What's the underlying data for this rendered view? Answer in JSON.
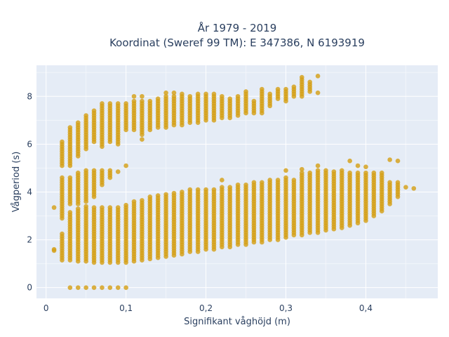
{
  "chart_data": {
    "type": "scatter",
    "title": [
      "År 1979 - 2019",
      "Koordinat (Sweref 99 TM): E 347386, N 6193919"
    ],
    "xlabel": "Signifikant våghöjd (m)",
    "ylabel": "Vågperiod (s)",
    "xlim": [
      -0.012,
      0.49
    ],
    "ylim": [
      -0.45,
      9.3
    ],
    "x_ticks": [
      0,
      0.1,
      0.2,
      0.3,
      0.4
    ],
    "x_tick_labels": [
      "0",
      "0,1",
      "0,2",
      "0,3",
      "0,4"
    ],
    "y_ticks": [
      0,
      2,
      4,
      6,
      8
    ],
    "y_tick_labels": [
      "0",
      "2",
      "4",
      "6",
      "8"
    ],
    "grid": true,
    "marker_color": "#D4A017",
    "series": [
      {
        "x_step": 0.01,
        "columns": [
          {
            "x": 0.01,
            "y": [
              1.55,
              1.6,
              3.35
            ]
          },
          {
            "x": 0.02,
            "y_ranges": [
              [
                1.15,
                2.3
              ],
              [
                2.9,
                4.6
              ],
              [
                5.1,
                6.1
              ]
            ]
          },
          {
            "x": 0.03,
            "y_ranges": [
              [
                1.15,
                3.2
              ],
              [
                3.5,
                4.6
              ],
              [
                5.1,
                6.7
              ]
            ],
            "y": [
              0
            ]
          },
          {
            "x": 0.04,
            "y_ranges": [
              [
                1.1,
                3.3
              ],
              [
                3.5,
                4.8
              ],
              [
                5.5,
                6.9
              ]
            ],
            "y": [
              0
            ]
          },
          {
            "x": 0.05,
            "y_ranges": [
              [
                1.1,
                3.4
              ],
              [
                3.6,
                4.9
              ],
              [
                5.8,
                7.2
              ]
            ],
            "y": [
              0
            ]
          },
          {
            "x": 0.06,
            "y_ranges": [
              [
                1.05,
                3.4
              ],
              [
                3.8,
                4.9
              ],
              [
                6.1,
                7.4
              ]
            ],
            "y": [
              0
            ]
          },
          {
            "x": 0.07,
            "y_ranges": [
              [
                1.05,
                3.4
              ],
              [
                4.3,
                4.9
              ],
              [
                5.9,
                7.7
              ]
            ],
            "y": [
              0
            ]
          },
          {
            "x": 0.08,
            "y_ranges": [
              [
                1.05,
                3.4
              ],
              [
                4.6,
                4.9
              ],
              [
                6.1,
                7.7
              ]
            ],
            "y": [
              0
            ]
          },
          {
            "x": 0.09,
            "y_ranges": [
              [
                1.05,
                3.4
              ],
              [
                6.0,
                7.7
              ]
            ],
            "y": [
              0,
              4.85
            ]
          },
          {
            "x": 0.1,
            "y_ranges": [
              [
                1.05,
                3.5
              ],
              [
                6.6,
                7.7
              ]
            ],
            "y": [
              0,
              5.1
            ]
          },
          {
            "x": 0.11,
            "y_ranges": [
              [
                1.1,
                3.6
              ],
              [
                6.6,
                7.8
              ]
            ],
            "y": [
              8.0
            ]
          },
          {
            "x": 0.12,
            "y_ranges": [
              [
                1.15,
                3.7
              ],
              [
                6.4,
                7.8
              ]
            ],
            "y": [
              8.0,
              6.2
            ]
          },
          {
            "x": 0.13,
            "y_ranges": [
              [
                1.2,
                3.8
              ],
              [
                6.6,
                7.8
              ]
            ]
          },
          {
            "x": 0.14,
            "y_ranges": [
              [
                1.25,
                3.9
              ],
              [
                6.7,
                7.9
              ]
            ]
          },
          {
            "x": 0.15,
            "y_ranges": [
              [
                1.3,
                3.95
              ],
              [
                6.7,
                8.0
              ]
            ],
            "y": [
              8.15
            ]
          },
          {
            "x": 0.16,
            "y_ranges": [
              [
                1.35,
                4.0
              ],
              [
                6.8,
                8.0
              ]
            ],
            "y": [
              8.15
            ]
          },
          {
            "x": 0.17,
            "y_ranges": [
              [
                1.4,
                4.05
              ],
              [
                6.8,
                8.0
              ]
            ],
            "y": [
              8.1
            ]
          },
          {
            "x": 0.18,
            "y_ranges": [
              [
                1.5,
                4.1
              ],
              [
                6.9,
                8.0
              ]
            ]
          },
          {
            "x": 0.19,
            "y_ranges": [
              [
                1.5,
                4.1
              ],
              [
                6.9,
                8.1
              ]
            ]
          },
          {
            "x": 0.2,
            "y_ranges": [
              [
                1.6,
                4.15
              ],
              [
                7.0,
                8.1
              ]
            ]
          },
          {
            "x": 0.21,
            "y_ranges": [
              [
                1.6,
                4.15
              ],
              [
                7.0,
                8.1
              ]
            ]
          },
          {
            "x": 0.22,
            "y_ranges": [
              [
                1.7,
                4.2
              ],
              [
                7.1,
                8.0
              ]
            ],
            "y": [
              4.5
            ]
          },
          {
            "x": 0.23,
            "y_ranges": [
              [
                1.7,
                4.2
              ],
              [
                7.1,
                7.9
              ]
            ]
          },
          {
            "x": 0.24,
            "y_ranges": [
              [
                1.8,
                4.3
              ],
              [
                7.2,
                8.0
              ]
            ]
          },
          {
            "x": 0.25,
            "y_ranges": [
              [
                1.8,
                4.3
              ],
              [
                7.3,
                8.2
              ]
            ]
          },
          {
            "x": 0.26,
            "y_ranges": [
              [
                1.9,
                4.4
              ],
              [
                7.3,
                7.8
              ]
            ]
          },
          {
            "x": 0.27,
            "y_ranges": [
              [
                1.9,
                4.4
              ],
              [
                7.3,
                8.3
              ]
            ]
          },
          {
            "x": 0.28,
            "y_ranges": [
              [
                2.0,
                4.5
              ],
              [
                7.6,
                8.1
              ]
            ]
          },
          {
            "x": 0.29,
            "y_ranges": [
              [
                2.0,
                4.5
              ],
              [
                7.9,
                8.3
              ]
            ]
          },
          {
            "x": 0.3,
            "y_ranges": [
              [
                2.1,
                4.6
              ],
              [
                7.8,
                8.3
              ]
            ],
            "y": [
              4.9
            ]
          },
          {
            "x": 0.31,
            "y_ranges": [
              [
                2.2,
                4.5
              ],
              [
                8.0,
                8.4
              ]
            ]
          },
          {
            "x": 0.32,
            "y_ranges": [
              [
                2.2,
                4.8
              ],
              [
                8.0,
                8.8
              ]
            ],
            "y": [
              4.95
            ]
          },
          {
            "x": 0.33,
            "y_ranges": [
              [
                2.3,
                4.8
              ],
              [
                8.2,
                8.6
              ]
            ]
          },
          {
            "x": 0.34,
            "y_ranges": [
              [
                2.3,
                4.9
              ]
            ],
            "y": [
              8.15,
              8.85,
              5.1
            ]
          },
          {
            "x": 0.35,
            "y_ranges": [
              [
                2.4,
                4.9
              ]
            ]
          },
          {
            "x": 0.36,
            "y_ranges": [
              [
                2.45,
                4.9
              ]
            ]
          },
          {
            "x": 0.37,
            "y_ranges": [
              [
                2.5,
                4.9
              ]
            ]
          },
          {
            "x": 0.38,
            "y_ranges": [
              [
                2.6,
                4.8
              ]
            ],
            "y": [
              5.3
            ]
          },
          {
            "x": 0.39,
            "y_ranges": [
              [
                2.7,
                4.8
              ]
            ],
            "y": [
              5.1
            ]
          },
          {
            "x": 0.4,
            "y_ranges": [
              [
                2.8,
                4.8
              ]
            ],
            "y": [
              5.05
            ]
          },
          {
            "x": 0.41,
            "y_ranges": [
              [
                3.0,
                4.8
              ]
            ]
          },
          {
            "x": 0.42,
            "y_ranges": [
              [
                3.2,
                4.8
              ]
            ]
          },
          {
            "x": 0.43,
            "y_ranges": [
              [
                3.5,
                4.4
              ]
            ],
            "y": [
              5.35
            ]
          },
          {
            "x": 0.44,
            "y_ranges": [
              [
                3.8,
                4.4
              ]
            ],
            "y": [
              5.3
            ]
          },
          {
            "x": 0.45,
            "y": [
              4.2
            ]
          },
          {
            "x": 0.46,
            "y": [
              4.15
            ]
          }
        ]
      }
    ]
  }
}
